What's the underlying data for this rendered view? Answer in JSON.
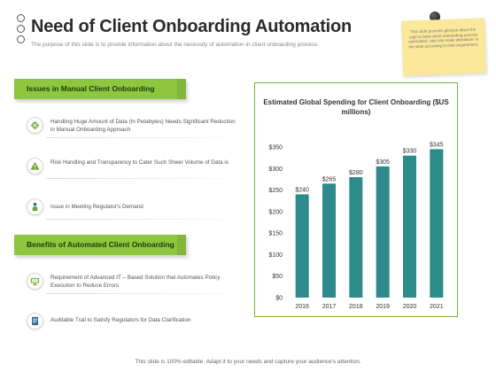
{
  "header": {
    "title": "Need of Client Onboarding Automation",
    "subtitle": "The purpose of this slide is to provide information about the necessity of automation in client onboarding process."
  },
  "note": {
    "text": "This slide provides glimpse about the urge to have client onboarding process automated, rate can make alterations in the slide according to their requirement."
  },
  "section1": {
    "heading": "Issues in Manual Client Onboarding",
    "items": [
      {
        "text": "Handling Huge Amount of Data (In Petabytes) Needs Significant Reduction in Manual Onboarding Approach",
        "icon": "gear-icon"
      },
      {
        "text": "Risk Handling and Transparency  to Cater Such Sheer Volume of Data is",
        "icon": "warning-icon"
      },
      {
        "text": "Issue in Meeting Regulator's Demand",
        "icon": "person-icon"
      }
    ]
  },
  "section2": {
    "heading": "Benefits of Automated Client Onboarding",
    "items": [
      {
        "text": "Requirement of Advanced IT – Based Solution that Automates Policy Execution to Reduce Errors",
        "icon": "monitor-icon"
      },
      {
        "text": "Auditable Trail to Satisfy Regulators for Data Clarification",
        "icon": "document-icon"
      }
    ]
  },
  "chart_data": {
    "type": "bar",
    "title": "Estimated Global Spending for Client Onboarding ($US millions)",
    "categories": [
      "2016",
      "2017",
      "2018",
      "2019",
      "2020",
      "2021"
    ],
    "values": [
      240,
      265,
      280,
      305,
      330,
      345
    ],
    "data_labels": [
      "$240",
      "$265",
      "$280",
      "$305",
      "$330",
      "$345"
    ],
    "y_ticks": [
      "$0",
      "$50",
      "$100",
      "$150",
      "$200",
      "$250",
      "$300",
      "$350"
    ],
    "ylim": [
      0,
      350
    ],
    "grid": false,
    "bar_color": "#2e8b8b"
  },
  "footer": {
    "text": "This slide is 100% editable. Adapt it to your needs and capture your audience's attention."
  },
  "colors": {
    "accent_green": "#8dc63f",
    "bar_teal": "#2e8b8b",
    "note_yellow": "#fbe89a"
  }
}
